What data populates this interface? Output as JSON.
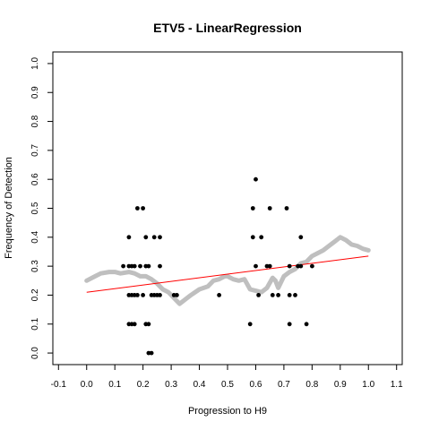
{
  "chart_data": {
    "type": "scatter",
    "title": "ETV5 - LinearRegression",
    "xlabel": "Progression to H9",
    "ylabel": "Frequency of Detection",
    "xlim": [
      -0.12,
      1.12
    ],
    "ylim": [
      -0.04,
      1.04
    ],
    "xticks": [
      -0.1,
      0.0,
      0.1,
      0.2,
      0.3,
      0.4,
      0.5,
      0.6,
      0.7,
      0.8,
      0.9,
      1.0,
      1.1
    ],
    "xtick_labels": [
      "-0.1",
      "0.0",
      "0.1",
      "0.2",
      "0.3",
      "0.4",
      "0.5",
      "0.6",
      "0.7",
      "0.8",
      "0.9",
      "1.0",
      "1.1"
    ],
    "yticks": [
      0.0,
      0.1,
      0.2,
      0.3,
      0.4,
      0.5,
      0.6,
      0.7,
      0.8,
      0.9,
      1.0
    ],
    "ytick_labels": [
      "0.0",
      "0.1",
      "0.2",
      "0.3",
      "0.4",
      "0.5",
      "0.6",
      "0.7",
      "0.8",
      "0.9",
      "1.0"
    ],
    "grid": false,
    "colors": {
      "points": "#000000",
      "smooth": "#bfbfbf",
      "fit": "#ff0000",
      "axis": "#000000"
    },
    "points": [
      [
        0.13,
        0.3
      ],
      [
        0.15,
        0.3
      ],
      [
        0.16,
        0.3
      ],
      [
        0.17,
        0.3
      ],
      [
        0.15,
        0.4
      ],
      [
        0.15,
        0.2
      ],
      [
        0.16,
        0.2
      ],
      [
        0.17,
        0.2
      ],
      [
        0.18,
        0.2
      ],
      [
        0.15,
        0.1
      ],
      [
        0.16,
        0.1
      ],
      [
        0.17,
        0.1
      ],
      [
        0.18,
        0.5
      ],
      [
        0.2,
        0.5
      ],
      [
        0.19,
        0.3
      ],
      [
        0.21,
        0.3
      ],
      [
        0.22,
        0.3
      ],
      [
        0.21,
        0.4
      ],
      [
        0.2,
        0.2
      ],
      [
        0.21,
        0.1
      ],
      [
        0.22,
        0.1
      ],
      [
        0.22,
        0.0
      ],
      [
        0.23,
        0.0
      ],
      [
        0.23,
        0.2
      ],
      [
        0.24,
        0.2
      ],
      [
        0.25,
        0.2
      ],
      [
        0.24,
        0.4
      ],
      [
        0.26,
        0.4
      ],
      [
        0.26,
        0.3
      ],
      [
        0.26,
        0.2
      ],
      [
        0.31,
        0.2
      ],
      [
        0.32,
        0.2
      ],
      [
        0.47,
        0.2
      ],
      [
        0.58,
        0.1
      ],
      [
        0.59,
        0.5
      ],
      [
        0.59,
        0.4
      ],
      [
        0.6,
        0.3
      ],
      [
        0.6,
        0.6
      ],
      [
        0.61,
        0.2
      ],
      [
        0.62,
        0.4
      ],
      [
        0.64,
        0.3
      ],
      [
        0.65,
        0.3
      ],
      [
        0.65,
        0.5
      ],
      [
        0.66,
        0.2
      ],
      [
        0.68,
        0.2
      ],
      [
        0.71,
        0.5
      ],
      [
        0.72,
        0.3
      ],
      [
        0.72,
        0.1
      ],
      [
        0.72,
        0.2
      ],
      [
        0.74,
        0.2
      ],
      [
        0.75,
        0.3
      ],
      [
        0.76,
        0.4
      ],
      [
        0.76,
        0.3
      ],
      [
        0.78,
        0.1
      ],
      [
        0.8,
        0.3
      ]
    ],
    "smooth_line": {
      "x": [
        0.0,
        0.03,
        0.05,
        0.08,
        0.1,
        0.12,
        0.15,
        0.17,
        0.19,
        0.21,
        0.23,
        0.25,
        0.27,
        0.29,
        0.31,
        0.33,
        0.35,
        0.37,
        0.4,
        0.43,
        0.45,
        0.47,
        0.49,
        0.5,
        0.52,
        0.54,
        0.56,
        0.58,
        0.6,
        0.62,
        0.64,
        0.66,
        0.67,
        0.68,
        0.7,
        0.72,
        0.74,
        0.76,
        0.78,
        0.8,
        0.82,
        0.84,
        0.86,
        0.88,
        0.9,
        0.92,
        0.94,
        0.96,
        0.98,
        1.0
      ],
      "y": [
        0.25,
        0.265,
        0.275,
        0.28,
        0.28,
        0.275,
        0.28,
        0.275,
        0.265,
        0.265,
        0.255,
        0.24,
        0.22,
        0.21,
        0.19,
        0.17,
        0.185,
        0.2,
        0.22,
        0.23,
        0.25,
        0.255,
        0.265,
        0.265,
        0.255,
        0.25,
        0.255,
        0.22,
        0.215,
        0.21,
        0.225,
        0.26,
        0.25,
        0.225,
        0.265,
        0.28,
        0.29,
        0.31,
        0.315,
        0.335,
        0.345,
        0.355,
        0.37,
        0.385,
        0.4,
        0.39,
        0.375,
        0.37,
        0.36,
        0.355
      ]
    },
    "fit_line": {
      "x": [
        0.0,
        1.0
      ],
      "y": [
        0.21,
        0.335
      ]
    }
  }
}
